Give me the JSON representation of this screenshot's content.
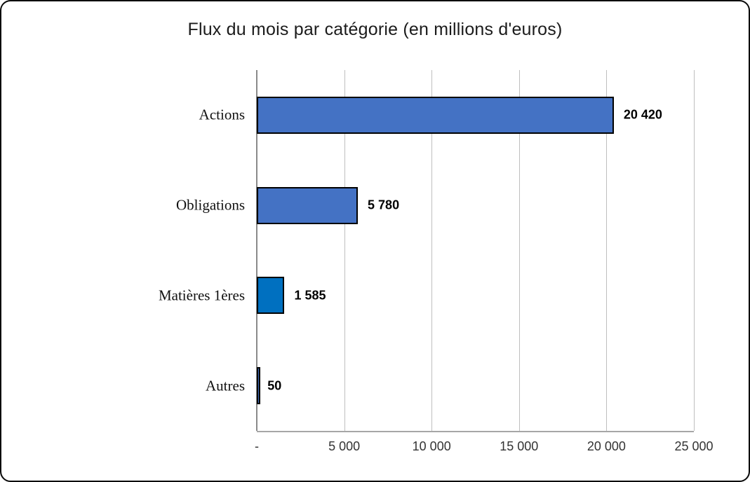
{
  "chart_data": {
    "type": "bar",
    "orientation": "horizontal",
    "title": "Flux du mois par catégorie (en millions d'euros)",
    "categories": [
      "Actions",
      "Obligations",
      "Matières 1ères",
      "Autres"
    ],
    "values": [
      20420,
      5780,
      1585,
      50
    ],
    "value_labels": [
      "20 420",
      "5 780",
      "1 585",
      "50"
    ],
    "bar_colors": [
      "#4472C4",
      "#4472C4",
      "#0070C0",
      "#4472C4"
    ],
    "bar_border_color": "#000000",
    "xlim": [
      0,
      25000
    ],
    "x_ticks": [
      0,
      5000,
      10000,
      15000,
      20000,
      25000
    ],
    "x_tick_labels": [
      "-",
      "5 000",
      "10 000",
      "15 000",
      "20 000",
      "25 000"
    ],
    "grid": true,
    "gridline_color": "#BFBFBF",
    "axis_line_color": "#A6A6A6",
    "legend": "none"
  }
}
